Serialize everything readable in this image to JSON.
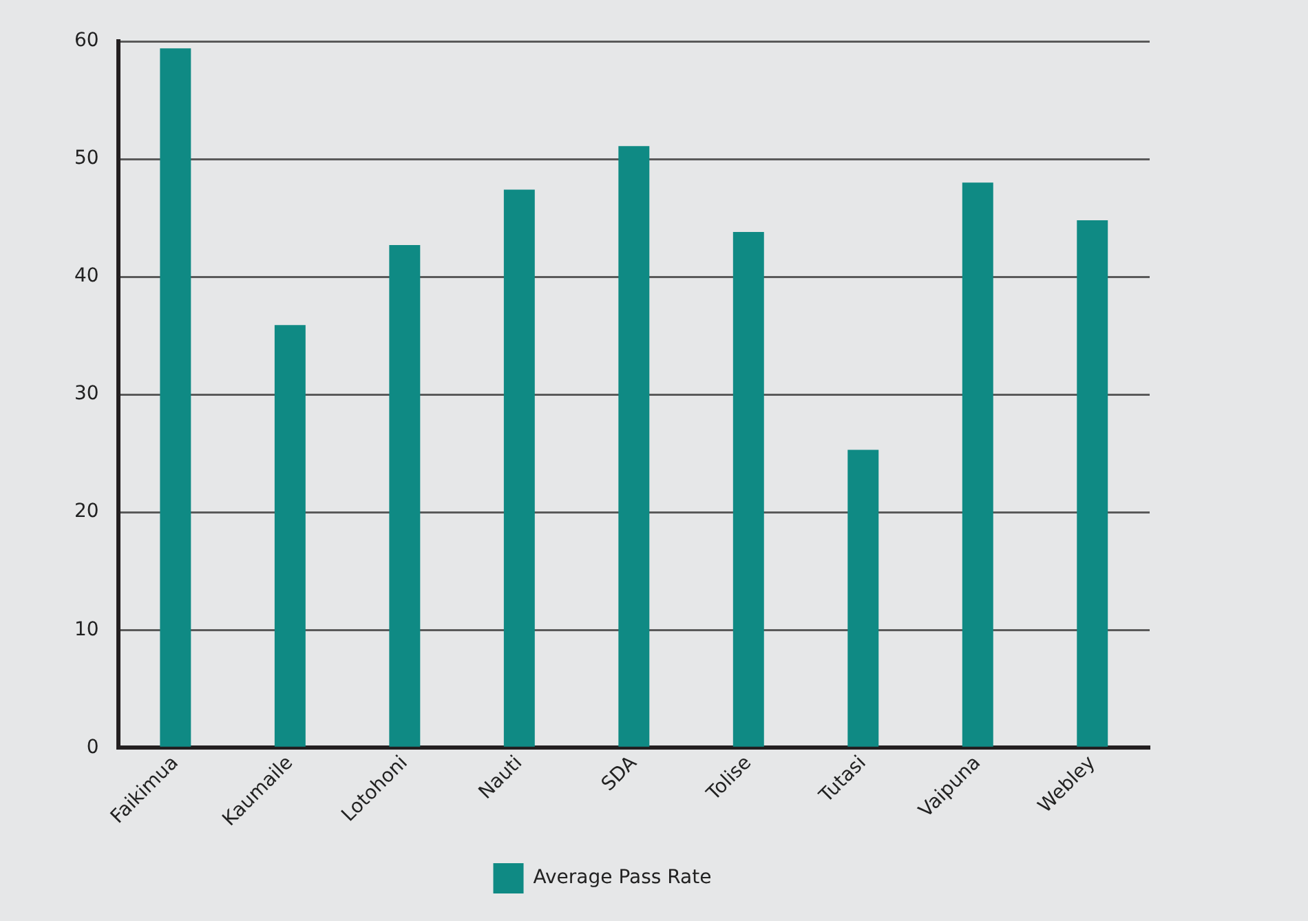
{
  "chart_data": {
    "type": "bar",
    "categories": [
      "Faikimua",
      "Kaumaile",
      "Lotohoni",
      "Nauti",
      "SDA",
      "Tolise",
      "Tutasi",
      "Vaipuna",
      "Webley"
    ],
    "series": [
      {
        "name": "Average Pass Rate",
        "color": "#0f8a84",
        "values": [
          59.4,
          35.9,
          42.7,
          47.4,
          51.1,
          43.8,
          25.3,
          48.0,
          44.8
        ]
      }
    ],
    "ylim": [
      0,
      60
    ],
    "yticks": [
      0,
      10,
      20,
      30,
      40,
      50,
      60
    ],
    "grid": "y",
    "legend": "bottom"
  }
}
